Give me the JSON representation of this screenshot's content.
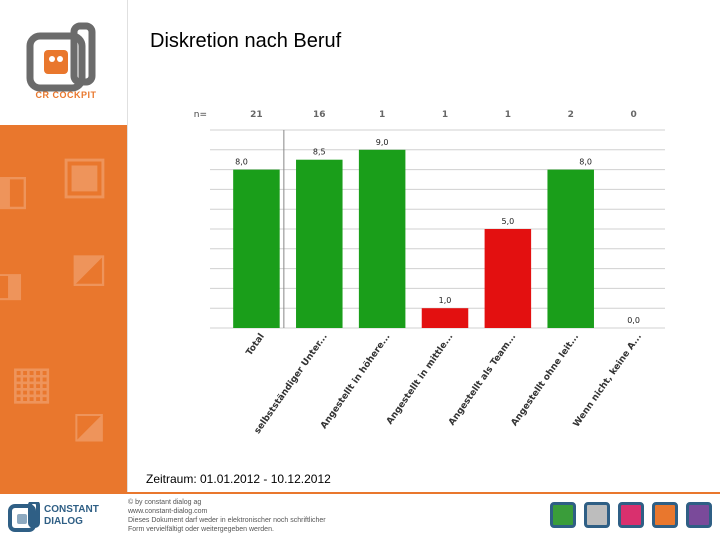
{
  "slide": {
    "title": "Diskretion nach Beruf",
    "period": "Zeitraum: 01.01.2012 - 10.12.2012",
    "logo_text": "CR COCKPIT"
  },
  "footer": {
    "brand_line1": "CONSTANT",
    "brand_line2": "DIALOG",
    "copyright_line1": "© by constant dialog ag",
    "copyright_line2": "www.constant-dialog.com",
    "copyright_line3": "Dieses Dokument darf weder in elektronischer noch schriftlicher",
    "copyright_line4": "Form vervielfältigt oder weitergegeben werden."
  },
  "colors": {
    "accent": "#e9772d",
    "green": "#1a9e1a",
    "red": "#e31010",
    "brand_blue": "#2f5f85"
  },
  "chart_data": {
    "type": "bar",
    "title": "Diskretion nach Beruf",
    "n_label": "n=",
    "categories": [
      "Total",
      "selbstständiger Unter...",
      "Angestellt in höhere...",
      "Angestellt in mittle...",
      "Angestellt als Team...",
      "Angestellt ohne leit...",
      "Wenn nicht, keine A..."
    ],
    "values": [
      8.0,
      8.5,
      9.0,
      1.0,
      5.0,
      8.0,
      0.0
    ],
    "value_labels": [
      "8,0",
      "8,5",
      "9,0",
      "1,0",
      "5,0",
      "8,0",
      "0,0"
    ],
    "n_values": [
      "21",
      "16",
      "1",
      "1",
      "1",
      "2",
      "0"
    ],
    "bar_colors": [
      "#1a9e1a",
      "#1a9e1a",
      "#1a9e1a",
      "#e31010",
      "#e31010",
      "#1a9e1a",
      "#1a9e1a"
    ],
    "ylim": [
      0,
      10
    ],
    "xlabel": "",
    "ylabel": "",
    "grid": true
  }
}
